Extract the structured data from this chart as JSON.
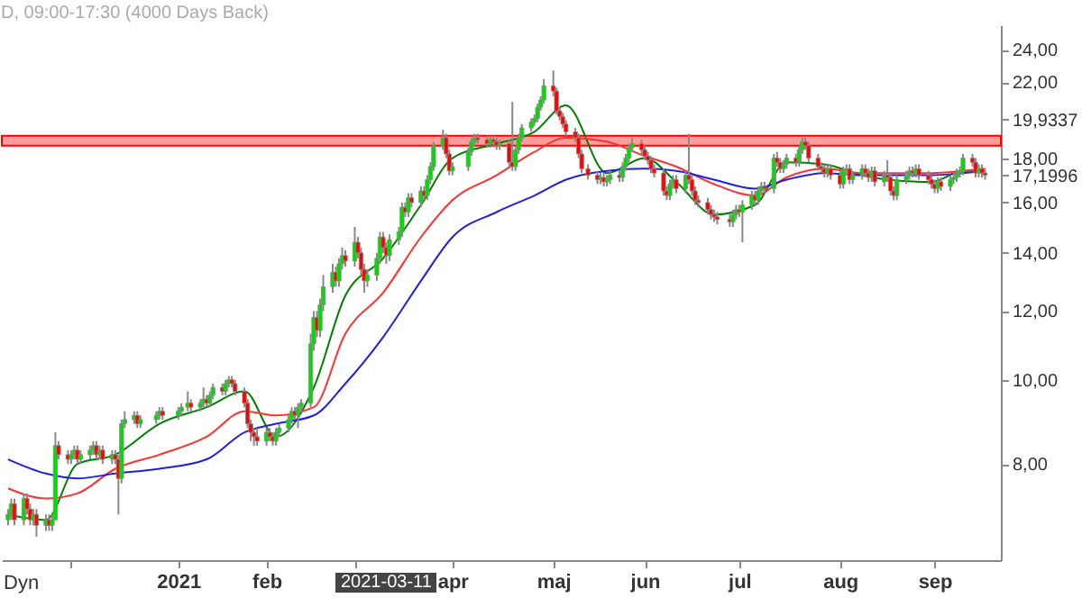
{
  "chart_data": {
    "type": "candlestick",
    "title": "D, 09:00-17:30 (4000 Days Back)",
    "x": [
      "2020-11-11",
      "2020-11-12",
      "2020-11-13",
      "2020-11-16",
      "2020-11-17",
      "2020-11-18",
      "2020-11-19",
      "2020-11-20",
      "2020-11-23",
      "2020-11-24",
      "2020-11-25",
      "2020-11-26",
      "2020-11-27",
      "2020-11-30",
      "2020-12-01",
      "2020-12-02",
      "2020-12-03",
      "2020-12-04",
      "2020-12-07",
      "2020-12-08",
      "2020-12-09",
      "2020-12-10",
      "2020-12-11",
      "2020-12-14",
      "2020-12-15",
      "2020-12-16",
      "2020-12-17",
      "2020-12-18",
      "2020-12-21",
      "2020-12-22",
      "2020-12-23",
      "2020-12-28",
      "2020-12-29",
      "2020-12-30",
      "2021-01-04",
      "2021-01-05",
      "2021-01-07",
      "2021-01-08",
      "2021-01-11",
      "2021-01-12",
      "2021-01-13",
      "2021-01-14",
      "2021-01-15",
      "2021-01-18",
      "2021-01-19",
      "2021-01-20",
      "2021-01-21",
      "2021-01-22",
      "2021-01-25",
      "2021-01-26",
      "2021-01-27",
      "2021-01-28",
      "2021-01-29",
      "2021-02-01",
      "2021-02-02",
      "2021-02-03",
      "2021-02-04",
      "2021-02-05",
      "2021-02-08",
      "2021-02-09",
      "2021-02-10",
      "2021-02-11",
      "2021-02-12",
      "2021-02-15",
      "2021-02-16",
      "2021-02-17",
      "2021-02-18",
      "2021-02-19",
      "2021-02-22",
      "2021-02-23",
      "2021-02-24",
      "2021-02-25",
      "2021-02-26",
      "2021-03-01",
      "2021-03-02",
      "2021-03-03",
      "2021-03-04",
      "2021-03-05",
      "2021-03-08",
      "2021-03-09",
      "2021-03-10",
      "2021-03-11",
      "2021-03-12",
      "2021-03-15",
      "2021-03-16",
      "2021-03-17",
      "2021-03-18",
      "2021-03-19",
      "2021-03-22",
      "2021-03-23",
      "2021-03-24",
      "2021-03-25",
      "2021-03-26",
      "2021-03-29",
      "2021-03-30",
      "2021-03-31",
      "2021-04-01",
      "2021-04-06",
      "2021-04-07",
      "2021-04-08",
      "2021-04-09",
      "2021-04-12",
      "2021-04-13",
      "2021-04-14",
      "2021-04-15",
      "2021-04-16",
      "2021-04-19",
      "2021-04-20",
      "2021-04-21",
      "2021-04-22",
      "2021-04-23",
      "2021-04-26",
      "2021-04-27",
      "2021-04-28",
      "2021-04-29",
      "2021-04-30",
      "2021-05-03",
      "2021-05-04",
      "2021-05-05",
      "2021-05-06",
      "2021-05-07",
      "2021-05-10",
      "2021-05-11",
      "2021-05-12",
      "2021-05-14",
      "2021-05-17",
      "2021-05-18",
      "2021-05-19",
      "2021-05-20",
      "2021-05-21",
      "2021-05-24",
      "2021-05-25",
      "2021-05-26",
      "2021-05-27",
      "2021-05-28",
      "2021-05-31",
      "2021-06-01",
      "2021-06-02",
      "2021-06-03",
      "2021-06-04",
      "2021-06-07",
      "2021-06-08",
      "2021-06-09",
      "2021-06-10",
      "2021-06-11",
      "2021-06-14",
      "2021-06-15",
      "2021-06-16",
      "2021-06-17",
      "2021-06-18",
      "2021-06-21",
      "2021-06-22",
      "2021-06-23",
      "2021-06-24",
      "2021-06-28",
      "2021-06-29",
      "2021-06-30",
      "2021-07-01",
      "2021-07-02",
      "2021-07-05",
      "2021-07-06",
      "2021-07-07",
      "2021-07-08",
      "2021-07-09",
      "2021-07-12",
      "2021-07-13",
      "2021-07-14",
      "2021-07-15",
      "2021-07-16",
      "2021-07-19",
      "2021-07-20",
      "2021-07-21",
      "2021-07-22",
      "2021-07-23",
      "2021-07-26",
      "2021-07-27",
      "2021-07-28",
      "2021-07-29",
      "2021-07-30",
      "2021-08-02",
      "2021-08-03",
      "2021-08-04",
      "2021-08-05",
      "2021-08-06",
      "2021-08-09",
      "2021-08-10",
      "2021-08-11",
      "2021-08-12",
      "2021-08-13",
      "2021-08-16",
      "2021-08-17",
      "2021-08-18",
      "2021-08-19",
      "2021-08-20",
      "2021-08-23",
      "2021-08-24",
      "2021-08-25",
      "2021-08-26",
      "2021-08-27",
      "2021-08-30",
      "2021-08-31",
      "2021-09-01",
      "2021-09-02",
      "2021-09-03",
      "2021-09-06",
      "2021-09-07",
      "2021-09-08",
      "2021-09-09",
      "2021-09-10",
      "2021-09-13",
      "2021-09-14",
      "2021-09-15",
      "2021-09-16",
      "2021-09-17"
    ],
    "ohlc": [
      [
        6.9,
        7.1,
        6.8,
        7.0
      ],
      [
        7.0,
        7.3,
        6.9,
        7.2
      ],
      [
        7.2,
        7.3,
        6.8,
        6.9
      ],
      [
        6.9,
        7.4,
        6.8,
        7.3
      ],
      [
        7.3,
        7.4,
        7.0,
        7.1
      ],
      [
        7.1,
        7.2,
        6.8,
        6.9
      ],
      [
        6.9,
        7.1,
        6.8,
        7.0
      ],
      [
        7.0,
        7.1,
        6.6,
        6.8
      ],
      [
        6.8,
        7.0,
        6.7,
        6.9
      ],
      [
        6.9,
        7.0,
        6.7,
        6.8
      ],
      [
        6.8,
        7.0,
        6.7,
        6.9
      ],
      [
        6.9,
        8.7,
        6.9,
        8.4
      ],
      [
        8.4,
        8.5,
        8.1,
        8.2
      ],
      [
        8.2,
        8.3,
        8.0,
        8.1
      ],
      [
        8.1,
        8.3,
        8.0,
        8.2
      ],
      [
        8.2,
        8.4,
        8.1,
        8.3
      ],
      [
        8.3,
        8.4,
        8.0,
        8.1
      ],
      [
        8.1,
        8.3,
        8.0,
        8.2
      ],
      [
        8.2,
        8.4,
        8.1,
        8.3
      ],
      [
        8.3,
        8.5,
        8.2,
        8.4
      ],
      [
        8.4,
        8.5,
        8.1,
        8.2
      ],
      [
        8.2,
        8.4,
        8.1,
        8.3
      ],
      [
        8.3,
        8.4,
        8.0,
        8.1
      ],
      [
        8.1,
        8.3,
        8.0,
        8.2
      ],
      [
        8.2,
        8.3,
        8.0,
        8.1
      ],
      [
        8.1,
        8.2,
        7.0,
        7.7
      ],
      [
        7.7,
        9.0,
        7.6,
        8.9
      ],
      [
        8.9,
        9.2,
        8.8,
        9.0
      ],
      [
        9.0,
        9.2,
        8.9,
        9.1
      ],
      [
        9.1,
        9.2,
        8.8,
        8.9
      ],
      [
        8.9,
        9.1,
        8.8,
        9.0
      ],
      [
        9.0,
        9.2,
        8.9,
        9.1
      ],
      [
        9.1,
        9.3,
        9.0,
        9.2
      ],
      [
        9.2,
        9.3,
        9.0,
        9.1
      ],
      [
        9.1,
        9.3,
        9.0,
        9.2
      ],
      [
        9.2,
        9.4,
        9.1,
        9.3
      ],
      [
        9.3,
        9.7,
        9.2,
        9.4
      ],
      [
        9.4,
        9.5,
        9.2,
        9.3
      ],
      [
        9.3,
        9.5,
        9.2,
        9.4
      ],
      [
        9.4,
        9.8,
        9.3,
        9.5
      ],
      [
        9.5,
        9.6,
        9.3,
        9.4
      ],
      [
        9.4,
        9.7,
        9.3,
        9.6
      ],
      [
        9.6,
        9.9,
        9.5,
        9.8
      ],
      [
        9.8,
        9.9,
        9.6,
        9.7
      ],
      [
        9.7,
        10.0,
        9.6,
        9.9
      ],
      [
        9.9,
        10.1,
        9.8,
        10.0
      ],
      [
        10.0,
        10.1,
        9.8,
        9.9
      ],
      [
        9.9,
        10.0,
        9.6,
        9.7
      ],
      [
        9.7,
        9.8,
        9.3,
        9.4
      ],
      [
        9.4,
        9.5,
        8.8,
        8.9
      ],
      [
        8.9,
        9.0,
        8.5,
        8.7
      ],
      [
        8.7,
        8.8,
        8.4,
        8.6
      ],
      [
        8.6,
        8.8,
        8.4,
        8.5
      ],
      [
        8.5,
        8.8,
        8.4,
        8.7
      ],
      [
        8.7,
        8.8,
        8.5,
        8.6
      ],
      [
        8.6,
        8.7,
        8.4,
        8.5
      ],
      [
        8.5,
        8.8,
        8.4,
        8.7
      ],
      [
        8.7,
        8.9,
        8.6,
        8.8
      ],
      [
        8.8,
        9.1,
        8.7,
        9.0
      ],
      [
        9.0,
        9.3,
        8.9,
        9.2
      ],
      [
        9.2,
        9.3,
        9.0,
        9.1
      ],
      [
        9.1,
        9.4,
        8.8,
        9.3
      ],
      [
        9.3,
        9.5,
        9.2,
        9.4
      ],
      [
        9.4,
        11.3,
        9.3,
        11.0
      ],
      [
        11.0,
        12.0,
        10.8,
        11.8
      ],
      [
        11.8,
        12.0,
        11.2,
        11.4
      ],
      [
        11.4,
        12.4,
        11.2,
        12.2
      ],
      [
        12.2,
        13.2,
        12.0,
        12.8
      ],
      [
        12.8,
        13.6,
        12.6,
        13.3
      ],
      [
        13.3,
        13.5,
        12.8,
        13.0
      ],
      [
        13.0,
        13.8,
        12.8,
        13.6
      ],
      [
        13.6,
        14.2,
        13.4,
        13.9
      ],
      [
        13.9,
        14.1,
        13.5,
        13.7
      ],
      [
        13.7,
        15.0,
        13.5,
        14.4
      ],
      [
        14.4,
        14.6,
        13.8,
        14.0
      ],
      [
        14.0,
        14.2,
        13.2,
        13.4
      ],
      [
        13.4,
        13.6,
        12.6,
        13.0
      ],
      [
        13.0,
        13.4,
        12.8,
        13.2
      ],
      [
        13.2,
        14.0,
        13.0,
        13.8
      ],
      [
        13.8,
        14.8,
        13.6,
        14.6
      ],
      [
        14.6,
        14.8,
        14.0,
        14.2
      ],
      [
        14.2,
        14.4,
        13.6,
        13.9
      ],
      [
        13.9,
        14.7,
        13.7,
        14.5
      ],
      [
        14.5,
        15.0,
        14.3,
        14.8
      ],
      [
        14.8,
        16.0,
        14.6,
        15.8
      ],
      [
        15.8,
        16.0,
        15.4,
        15.6
      ],
      [
        15.6,
        16.4,
        15.4,
        16.2
      ],
      [
        16.2,
        16.4,
        15.8,
        16.0
      ],
      [
        16.0,
        16.7,
        15.8,
        16.5
      ],
      [
        16.5,
        16.7,
        16.1,
        16.3
      ],
      [
        16.3,
        17.2,
        16.1,
        17.0
      ],
      [
        17.0,
        17.8,
        16.8,
        17.6
      ],
      [
        17.6,
        18.8,
        17.4,
        18.6
      ],
      [
        18.6,
        19.4,
        18.4,
        19.0
      ],
      [
        19.0,
        19.2,
        18.0,
        18.2
      ],
      [
        18.2,
        18.4,
        17.2,
        17.4
      ],
      [
        17.4,
        17.8,
        17.2,
        17.6
      ],
      [
        17.6,
        18.5,
        17.4,
        18.3
      ],
      [
        18.3,
        19.0,
        18.1,
        18.8
      ],
      [
        18.8,
        19.2,
        18.6,
        19.0
      ],
      [
        19.0,
        19.2,
        18.7,
        18.9
      ],
      [
        18.9,
        19.1,
        18.5,
        18.7
      ],
      [
        18.7,
        19.1,
        18.5,
        18.9
      ],
      [
        18.9,
        19.1,
        18.6,
        18.8
      ],
      [
        18.8,
        19.0,
        18.4,
        18.6
      ],
      [
        18.6,
        18.9,
        18.4,
        18.7
      ],
      [
        18.7,
        18.9,
        17.6,
        17.8
      ],
      [
        17.8,
        20.9,
        17.4,
        17.6
      ],
      [
        17.6,
        18.6,
        17.4,
        18.4
      ],
      [
        18.4,
        19.2,
        18.2,
        19.0
      ],
      [
        19.0,
        19.7,
        18.8,
        19.5
      ],
      [
        19.5,
        20.0,
        19.3,
        19.8
      ],
      [
        19.8,
        20.2,
        19.6,
        20.0
      ],
      [
        20.0,
        20.8,
        19.8,
        20.6
      ],
      [
        20.6,
        21.2,
        20.4,
        21.0
      ],
      [
        21.0,
        22.2,
        20.8,
        21.8
      ],
      [
        21.8,
        22.7,
        21.2,
        21.5
      ],
      [
        21.5,
        21.7,
        20.2,
        20.4
      ],
      [
        20.4,
        20.6,
        19.9,
        20.1
      ],
      [
        20.1,
        20.3,
        19.5,
        19.7
      ],
      [
        19.7,
        19.9,
        19.1,
        19.3
      ],
      [
        19.3,
        19.5,
        18.8,
        19.0
      ],
      [
        19.0,
        19.2,
        18.0,
        18.2
      ],
      [
        18.2,
        18.4,
        17.3,
        17.5
      ],
      [
        17.5,
        17.7,
        17.0,
        17.2
      ],
      [
        17.2,
        17.4,
        16.8,
        17.0
      ],
      [
        17.0,
        17.3,
        16.8,
        17.1
      ],
      [
        17.1,
        17.3,
        16.7,
        16.9
      ],
      [
        16.9,
        17.2,
        16.7,
        17.0
      ],
      [
        17.0,
        17.4,
        16.8,
        17.2
      ],
      [
        17.2,
        17.4,
        16.9,
        17.1
      ],
      [
        17.1,
        17.8,
        16.9,
        17.6
      ],
      [
        17.6,
        18.2,
        17.4,
        18.0
      ],
      [
        18.0,
        18.7,
        17.8,
        18.5
      ],
      [
        18.5,
        19.0,
        18.3,
        18.7
      ],
      [
        18.7,
        18.9,
        18.2,
        18.4
      ],
      [
        18.4,
        18.6,
        17.9,
        18.1
      ],
      [
        18.1,
        18.3,
        17.7,
        17.9
      ],
      [
        17.9,
        18.1,
        17.3,
        17.5
      ],
      [
        17.5,
        17.7,
        17.1,
        17.3
      ],
      [
        17.3,
        17.5,
        16.3,
        16.5
      ],
      [
        16.5,
        16.7,
        16.1,
        16.3
      ],
      [
        16.3,
        17.0,
        16.1,
        16.8
      ],
      [
        16.8,
        17.2,
        16.6,
        17.0
      ],
      [
        17.0,
        17.2,
        16.4,
        16.6
      ],
      [
        16.6,
        17.4,
        16.4,
        17.2
      ],
      [
        17.2,
        19.2,
        16.8,
        17.0
      ],
      [
        17.0,
        17.2,
        16.3,
        16.5
      ],
      [
        16.5,
        16.7,
        15.9,
        16.1
      ],
      [
        16.1,
        16.3,
        15.8,
        16.0
      ],
      [
        16.0,
        16.2,
        15.5,
        15.7
      ],
      [
        15.7,
        15.9,
        15.3,
        15.5
      ],
      [
        15.5,
        15.7,
        15.2,
        15.4
      ],
      [
        15.4,
        15.6,
        15.1,
        15.3
      ],
      [
        15.3,
        15.5,
        15.0,
        15.2
      ],
      [
        15.2,
        15.7,
        15.0,
        15.5
      ],
      [
        15.5,
        15.9,
        15.3,
        15.7
      ],
      [
        15.7,
        15.9,
        15.4,
        15.6
      ],
      [
        15.6,
        16.1,
        14.4,
        15.9
      ],
      [
        15.9,
        16.5,
        15.7,
        16.3
      ],
      [
        16.3,
        16.5,
        15.9,
        16.1
      ],
      [
        16.1,
        16.7,
        15.9,
        16.5
      ],
      [
        16.5,
        16.9,
        16.3,
        16.7
      ],
      [
        16.7,
        16.9,
        16.4,
        16.6
      ],
      [
        16.6,
        18.2,
        16.4,
        18.0
      ],
      [
        18.0,
        18.3,
        17.6,
        17.8
      ],
      [
        17.8,
        18.0,
        17.3,
        17.5
      ],
      [
        17.5,
        17.9,
        17.3,
        17.7
      ],
      [
        17.7,
        18.2,
        17.5,
        18.0
      ],
      [
        18.0,
        18.2,
        17.6,
        17.8
      ],
      [
        17.8,
        18.6,
        17.6,
        18.4
      ],
      [
        18.4,
        19.0,
        18.2,
        18.8
      ],
      [
        18.8,
        19.0,
        18.4,
        18.6
      ],
      [
        18.6,
        18.8,
        17.8,
        18.0
      ],
      [
        18.0,
        18.2,
        17.4,
        17.6
      ],
      [
        17.6,
        17.8,
        17.3,
        17.5
      ],
      [
        17.5,
        17.7,
        17.1,
        17.3
      ],
      [
        17.3,
        17.7,
        17.1,
        17.5
      ],
      [
        17.5,
        17.7,
        17.0,
        17.2
      ],
      [
        17.2,
        17.4,
        16.6,
        16.8
      ],
      [
        16.8,
        17.6,
        16.6,
        17.4
      ],
      [
        17.4,
        17.7,
        17.2,
        17.5
      ],
      [
        17.5,
        17.7,
        16.8,
        17.0
      ],
      [
        17.0,
        17.4,
        16.8,
        17.2
      ],
      [
        17.2,
        17.7,
        17.0,
        17.5
      ],
      [
        17.5,
        17.7,
        17.1,
        17.3
      ],
      [
        17.3,
        17.5,
        16.9,
        17.1
      ],
      [
        17.1,
        17.6,
        16.9,
        17.4
      ],
      [
        17.4,
        17.6,
        16.7,
        16.9
      ],
      [
        16.9,
        17.4,
        16.7,
        17.2
      ],
      [
        17.2,
        17.9,
        16.9,
        17.1
      ],
      [
        17.1,
        17.3,
        16.3,
        16.5
      ],
      [
        16.5,
        16.7,
        16.1,
        16.3
      ],
      [
        16.3,
        17.2,
        16.1,
        17.0
      ],
      [
        17.0,
        17.4,
        16.8,
        17.2
      ],
      [
        17.2,
        17.6,
        17.0,
        17.4
      ],
      [
        17.4,
        17.6,
        17.1,
        17.3
      ],
      [
        17.3,
        17.7,
        17.1,
        17.5
      ],
      [
        17.5,
        17.7,
        17.0,
        17.2
      ],
      [
        17.2,
        17.4,
        16.8,
        17.0
      ],
      [
        17.0,
        17.2,
        16.6,
        16.8
      ],
      [
        16.8,
        17.0,
        16.4,
        16.6
      ],
      [
        16.6,
        17.1,
        16.4,
        16.9
      ],
      [
        16.9,
        17.1,
        16.5,
        16.7
      ],
      [
        16.7,
        17.2,
        16.5,
        17.0
      ],
      [
        17.0,
        17.3,
        16.8,
        17.1
      ],
      [
        17.1,
        17.5,
        16.9,
        17.3
      ],
      [
        17.3,
        17.6,
        17.1,
        17.4
      ],
      [
        17.4,
        18.2,
        17.2,
        18.0
      ],
      [
        18.0,
        18.2,
        17.6,
        17.8
      ],
      [
        17.8,
        18.0,
        17.1,
        17.3
      ],
      [
        17.3,
        17.7,
        17.1,
        17.5
      ],
      [
        17.5,
        17.7,
        17.1,
        17.3
      ],
      [
        17.3,
        17.5,
        17.0,
        17.2
      ]
    ],
    "series": [
      {
        "type": "line",
        "color": "#008000",
        "x": [
          "2020-11-11",
          "2020-11-23",
          "2020-12-03",
          "2020-12-15",
          "2020-12-29",
          "2021-01-13",
          "2021-01-25",
          "2021-02-04",
          "2021-02-16",
          "2021-02-26",
          "2021-03-10",
          "2021-03-22",
          "2021-04-01",
          "2021-04-15",
          "2021-04-27",
          "2021-05-07",
          "2021-05-20",
          "2021-06-01",
          "2021-06-11",
          "2021-06-23",
          "2021-07-06",
          "2021-07-16",
          "2021-07-28",
          "2021-08-09",
          "2021-08-17",
          "2021-08-31",
          "2021-09-10",
          "2021-09-17"
        ],
        "values": [
          7.0,
          6.9,
          8.0,
          8.2,
          8.9,
          9.3,
          9.7,
          8.6,
          9.8,
          12.5,
          13.8,
          15.9,
          18.0,
          18.7,
          19.3,
          20.7,
          17.3,
          18.0,
          16.9,
          15.5,
          15.9,
          17.8,
          17.7,
          17.2,
          17.0,
          16.9,
          17.4,
          17.4
        ]
      },
      {
        "type": "line",
        "color": "#ff3030",
        "x": [
          "2020-11-11",
          "2020-11-23",
          "2020-12-03",
          "2020-12-15",
          "2020-12-29",
          "2021-01-13",
          "2021-01-25",
          "2021-02-04",
          "2021-02-16",
          "2021-02-26",
          "2021-03-10",
          "2021-03-22",
          "2021-04-01",
          "2021-04-15",
          "2021-04-27",
          "2021-05-07",
          "2021-05-20",
          "2021-06-01",
          "2021-06-11",
          "2021-06-23",
          "2021-07-06",
          "2021-07-16",
          "2021-07-28",
          "2021-08-09",
          "2021-08-17",
          "2021-08-31",
          "2021-09-10",
          "2021-09-17"
        ],
        "values": [
          7.5,
          7.3,
          7.4,
          7.9,
          8.2,
          8.6,
          9.2,
          9.1,
          9.3,
          11.3,
          12.6,
          14.6,
          16.1,
          17.2,
          18.3,
          19.0,
          18.8,
          18.1,
          17.6,
          16.8,
          16.3,
          17.1,
          17.5,
          17.3,
          17.3,
          17.3,
          17.4,
          17.5
        ]
      },
      {
        "type": "line",
        "color": "#2020e0",
        "x": [
          "2020-11-11",
          "2020-11-23",
          "2020-12-03",
          "2020-12-15",
          "2020-12-29",
          "2021-01-13",
          "2021-01-25",
          "2021-02-04",
          "2021-02-16",
          "2021-02-26",
          "2021-03-10",
          "2021-03-22",
          "2021-04-01",
          "2021-04-15",
          "2021-04-27",
          "2021-05-07",
          "2021-05-20",
          "2021-06-01",
          "2021-06-11",
          "2021-06-23",
          "2021-07-06",
          "2021-07-16",
          "2021-07-28",
          "2021-08-09",
          "2021-08-17",
          "2021-08-31",
          "2021-09-10",
          "2021-09-17"
        ],
        "values": [
          8.1,
          7.8,
          7.7,
          7.8,
          7.9,
          8.1,
          8.7,
          8.9,
          9.1,
          9.9,
          11.2,
          13.0,
          14.6,
          15.6,
          16.3,
          17.0,
          17.4,
          17.5,
          17.4,
          17.0,
          16.6,
          17.0,
          17.3,
          17.2,
          17.2,
          17.2,
          17.3,
          17.4
        ]
      }
    ],
    "log": true,
    "ylim": [
      6.2,
      25.6
    ],
    "yticks": [
      {
        "value": 8,
        "label": "8,00"
      },
      {
        "value": 10,
        "label": "10,00"
      },
      {
        "value": 12,
        "label": "12,00"
      },
      {
        "value": 14,
        "label": "14,00"
      },
      {
        "value": 16,
        "label": "16,00"
      },
      {
        "value": 17.1996,
        "label": "17,1996"
      },
      {
        "value": 18,
        "label": "18,00"
      },
      {
        "value": 19.9337,
        "label": "19,9337"
      },
      {
        "value": 22,
        "label": "22,00"
      },
      {
        "value": 24,
        "label": "24,00"
      }
    ],
    "xlim": [
      "2020-11-09",
      "2021-09-22"
    ],
    "xticks": [
      {
        "value": "2020-12-01",
        "label": null
      },
      {
        "value": "2021-01-04",
        "label": "2021"
      },
      {
        "value": "2021-02-01",
        "label": "feb"
      },
      {
        "value": "2021-03-01",
        "label": null
      },
      {
        "value": "2021-04-01",
        "label": "apr"
      },
      {
        "value": "2021-05-03",
        "label": "maj"
      },
      {
        "value": "2021-06-01",
        "label": "jun"
      },
      {
        "value": "2021-07-01",
        "label": "jul"
      },
      {
        "value": "2021-08-02",
        "label": "aug"
      },
      {
        "value": "2021-09-01",
        "label": "sep"
      }
    ],
    "bands": [
      {
        "axis": "y",
        "from": 18.6,
        "to": 19.1,
        "color": "#ff9c9c"
      }
    ],
    "annotations": [
      "2021-03-11",
      "Dyn"
    ],
    "grid": false,
    "legend": false
  }
}
